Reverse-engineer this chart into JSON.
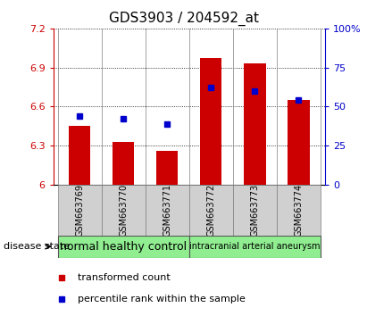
{
  "title": "GDS3903 / 204592_at",
  "samples": [
    "GSM663769",
    "GSM663770",
    "GSM663771",
    "GSM663772",
    "GSM663773",
    "GSM663774"
  ],
  "transformed_count": [
    6.45,
    6.33,
    6.26,
    6.97,
    6.93,
    6.65
  ],
  "percentile_rank": [
    44,
    42,
    39,
    62,
    60,
    54
  ],
  "bar_bottom": 6.0,
  "left_ylim": [
    6.0,
    7.2
  ],
  "right_ylim": [
    0,
    100
  ],
  "left_yticks": [
    6.0,
    6.3,
    6.6,
    6.9,
    7.2
  ],
  "right_yticks": [
    0,
    25,
    50,
    75,
    100
  ],
  "left_ytick_labels": [
    "6",
    "6.3",
    "6.6",
    "6.9",
    "7.2"
  ],
  "right_ytick_labels": [
    "0",
    "25",
    "50",
    "75",
    "100%"
  ],
  "bar_color": "#cc0000",
  "dot_color": "#0000cc",
  "plot_bg_color": "#ffffff",
  "sample_box_color": "#d0d0d0",
  "groups": [
    {
      "label": "normal healthy control",
      "samples": [
        0,
        1,
        2
      ],
      "color": "#90ee90",
      "fontsize": 9
    },
    {
      "label": "intracranial arterial aneurysm",
      "samples": [
        3,
        4,
        5
      ],
      "color": "#90ee90",
      "fontsize": 7
    }
  ],
  "disease_state_label": "disease state",
  "legend_items": [
    {
      "label": "transformed count",
      "color": "#cc0000"
    },
    {
      "label": "percentile rank within the sample",
      "color": "#0000cc"
    }
  ],
  "title_fontsize": 11,
  "tick_fontsize": 8,
  "sample_fontsize": 7,
  "legend_fontsize": 8
}
